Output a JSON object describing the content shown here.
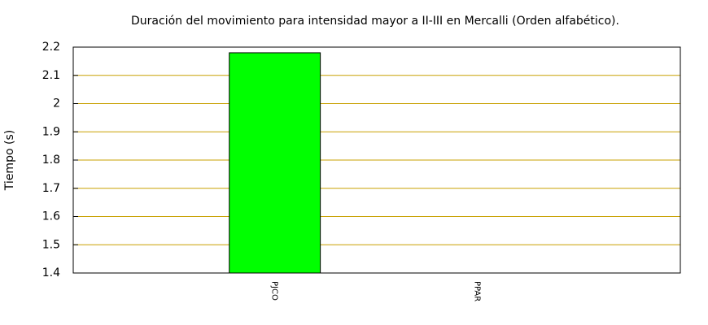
{
  "chart_data": {
    "type": "bar",
    "title": "Duración del movimiento para intensidad mayor a II-III en Mercalli (Orden alfabético).",
    "y_label": "Tiempo (s)",
    "categories": [
      "PJCO",
      "PPAR"
    ],
    "values": [
      2.18,
      1.4
    ],
    "color": "#00ff00",
    "ylim": [
      1.4,
      2.2
    ],
    "yticks": [
      1.4,
      1.5,
      1.6,
      1.7,
      1.8,
      1.9,
      2,
      2.1,
      2.2
    ],
    "grid": true
  }
}
